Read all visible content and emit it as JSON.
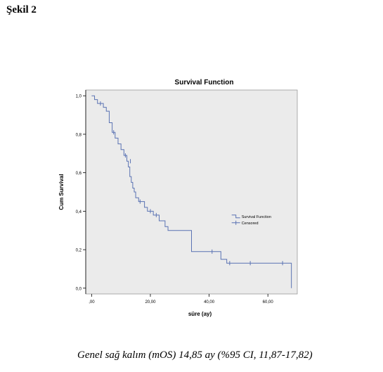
{
  "figure_label": "Şekil 2",
  "caption": "Genel sağ kalım (mOS) 14,85 ay (%95 CI, 11,87-17,82)",
  "colors": {
    "plot_background": "#ebebeb",
    "line": "#5b73b3",
    "axis": "#000000"
  },
  "chart_data": {
    "type": "line",
    "title": "Survival Function",
    "xlabel": "süre (ay)",
    "ylabel": "Cum Survival",
    "xlim": [
      -2,
      70
    ],
    "ylim": [
      -0.03,
      1.03
    ],
    "x_ticks": [
      {
        "value": 0,
        "label": ",00"
      },
      {
        "value": 20,
        "label": "20,00"
      },
      {
        "value": 40,
        "label": "40,00"
      },
      {
        "value": 60,
        "label": "60,00"
      }
    ],
    "y_ticks": [
      {
        "value": 0.0,
        "label": "0,0"
      },
      {
        "value": 0.2,
        "label": "0,2"
      },
      {
        "value": 0.4,
        "label": "0,4"
      },
      {
        "value": 0.6,
        "label": "0,6"
      },
      {
        "value": 0.8,
        "label": "0,8"
      },
      {
        "value": 1.0,
        "label": "1,0"
      }
    ],
    "legend": {
      "position": "center-right",
      "entries": [
        "Survival Function",
        "Censored"
      ]
    },
    "series": [
      {
        "name": "Survival Function",
        "step_points": [
          [
            0,
            1.0
          ],
          [
            1,
            0.98
          ],
          [
            2,
            0.96
          ],
          [
            4,
            0.94
          ],
          [
            5,
            0.92
          ],
          [
            6,
            0.86
          ],
          [
            7,
            0.81
          ],
          [
            8,
            0.78
          ],
          [
            9,
            0.75
          ],
          [
            10,
            0.72
          ],
          [
            11,
            0.69
          ],
          [
            12,
            0.66
          ],
          [
            12.5,
            0.63
          ],
          [
            13,
            0.58
          ],
          [
            13.5,
            0.55
          ],
          [
            14,
            0.52
          ],
          [
            14.5,
            0.5
          ],
          [
            15,
            0.47
          ],
          [
            16,
            0.45
          ],
          [
            18,
            0.42
          ],
          [
            19,
            0.4
          ],
          [
            21,
            0.38
          ],
          [
            23,
            0.35
          ],
          [
            25,
            0.32
          ],
          [
            26,
            0.3
          ],
          [
            34,
            0.19
          ],
          [
            44,
            0.15
          ],
          [
            46,
            0.13
          ],
          [
            68,
            0.0
          ]
        ],
        "end_x": 68
      },
      {
        "name": "Censored",
        "points": [
          [
            3,
            0.96
          ],
          [
            7.5,
            0.81
          ],
          [
            11.5,
            0.69
          ],
          [
            13.2,
            0.66
          ],
          [
            16.5,
            0.45
          ],
          [
            20,
            0.4
          ],
          [
            22,
            0.38
          ],
          [
            41,
            0.19
          ],
          [
            47,
            0.13
          ],
          [
            54,
            0.13
          ],
          [
            65,
            0.13
          ]
        ]
      }
    ]
  }
}
